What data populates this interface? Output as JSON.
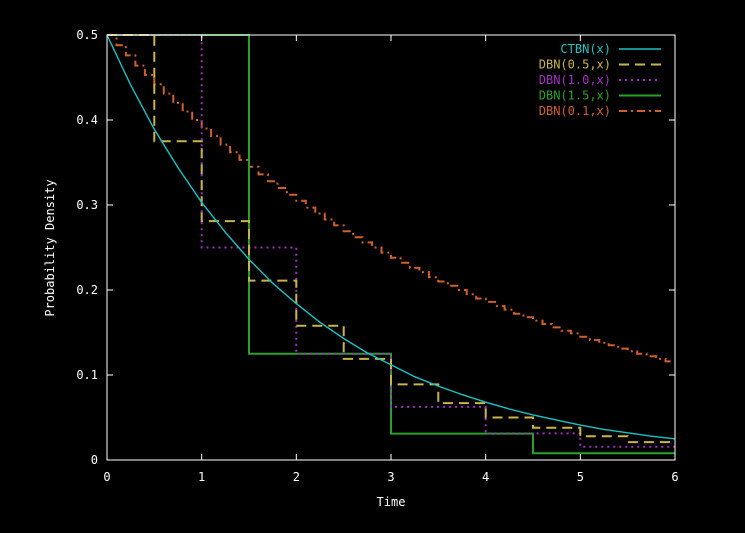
{
  "chart_data": {
    "type": "line",
    "xlabel": "Time",
    "ylabel": "Probability Density",
    "xlim": [
      0,
      6
    ],
    "ylim": [
      0,
      0.5
    ],
    "xticks": [
      0,
      1,
      2,
      3,
      4,
      5,
      6
    ],
    "yticks": [
      0,
      0.1,
      0.2,
      0.3,
      0.4,
      0.5
    ],
    "xtick_labels": [
      "0",
      "1",
      "2",
      "3",
      "4",
      "5",
      "6"
    ],
    "ytick_labels": [
      "0",
      "0.1",
      "0.2",
      "0.3",
      "0.4",
      "0.5"
    ],
    "grid": false,
    "legend_position": "top-right",
    "series": [
      {
        "name": "CTBN(x)",
        "kind": "curve",
        "color": "#19c3c3",
        "dash": "solid",
        "x": [
          0,
          0.25,
          0.5,
          0.75,
          1,
          1.25,
          1.5,
          1.75,
          2,
          2.25,
          2.5,
          2.75,
          3,
          3.25,
          3.5,
          3.75,
          4,
          4.25,
          4.5,
          4.75,
          5,
          5.25,
          5.5,
          5.75,
          6
        ],
        "y": [
          0.5,
          0.441,
          0.389,
          0.344,
          0.303,
          0.268,
          0.236,
          0.208,
          0.184,
          0.162,
          0.143,
          0.126,
          0.112,
          0.098,
          0.087,
          0.077,
          0.068,
          0.06,
          0.053,
          0.047,
          0.041,
          0.036,
          0.032,
          0.028,
          0.025
        ]
      },
      {
        "name": "DBN(0.5,x)",
        "kind": "step",
        "color": "#c9b44a",
        "dash": "longdash",
        "step": 0.5,
        "y": [
          0.5,
          0.375,
          0.281,
          0.211,
          0.158,
          0.119,
          0.089,
          0.067,
          0.05,
          0.038,
          0.028,
          0.021
        ]
      },
      {
        "name": "DBN(1.0,x)",
        "kind": "step",
        "color": "#a030c0",
        "dash": "dot",
        "step": 1.0,
        "y": [
          0.5,
          0.25,
          0.125,
          0.0625,
          0.03125,
          0.0156
        ]
      },
      {
        "name": "DBN(1.5,x)",
        "kind": "step",
        "color": "#2aa02a",
        "dash": "solid",
        "step": 1.5,
        "y": [
          0.5,
          0.125,
          0.031,
          0.008
        ]
      },
      {
        "name": "DBN(0.1,x)",
        "kind": "step",
        "color": "#d2602a",
        "dash": "dashdot",
        "step": 0.1,
        "y": [
          0.5,
          0.488,
          0.476,
          0.464,
          0.453,
          0.442,
          0.431,
          0.42,
          0.41,
          0.4,
          0.39,
          0.381,
          0.371,
          0.362,
          0.353,
          0.345,
          0.336,
          0.328,
          0.32,
          0.312,
          0.305,
          0.297,
          0.29,
          0.283,
          0.276,
          0.269,
          0.262,
          0.256,
          0.25,
          0.244,
          0.238,
          0.232,
          0.226,
          0.221,
          0.215,
          0.21,
          0.205,
          0.2,
          0.195,
          0.19,
          0.186,
          0.181,
          0.177,
          0.172,
          0.168,
          0.164,
          0.16,
          0.156,
          0.152,
          0.149,
          0.145,
          0.141,
          0.138,
          0.135,
          0.131,
          0.128,
          0.125,
          0.122,
          0.119,
          0.116
        ]
      }
    ]
  }
}
